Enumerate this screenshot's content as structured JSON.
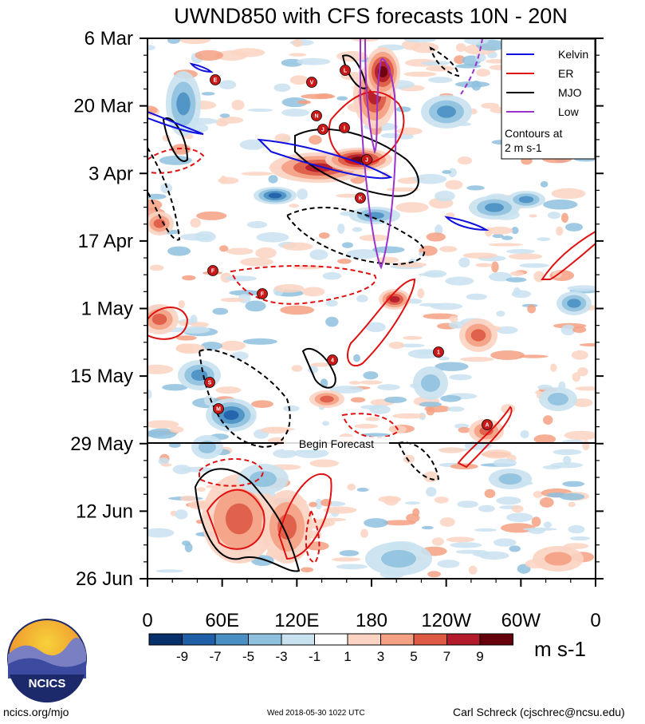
{
  "chart_data": {
    "type": "heatmap",
    "title": "UWND850 with CFS forecasts  10N - 20N",
    "x_ticks": [
      "0",
      "60E",
      "120E",
      "180",
      "120W",
      "60W",
      "0"
    ],
    "y_ticks": [
      "6 Mar",
      "20 Mar",
      "3 Apr",
      "17 Apr",
      "1 May",
      "15 May",
      "29 May",
      "12 Jun",
      "26 Jun"
    ],
    "colorbar": {
      "levels": [
        "-9",
        "-7",
        "-5",
        "-3",
        "-1",
        "1",
        "3",
        "5",
        "7",
        "9"
      ],
      "colors": [
        "#08306b",
        "#1f5fa8",
        "#4a90c4",
        "#8fc1de",
        "#c9e2f0",
        "#ffffff",
        "#fbd3c2",
        "#f4a083",
        "#de5a45",
        "#b31b2b",
        "#67000d"
      ],
      "units": "m s-1"
    },
    "legend": {
      "position": "top-right",
      "entries": [
        {
          "name": "Kelvin",
          "color": "#1010e0"
        },
        {
          "name": "ER",
          "color": "#e01010"
        },
        {
          "name": "MJO",
          "color": "#000000"
        },
        {
          "name": "Low",
          "color": "#9933cc"
        }
      ],
      "note_line1": "Contours at",
      "note_line2": "2 m s-1"
    },
    "forecast_marker": {
      "date": "29 May",
      "label": "Begin Forecast"
    },
    "storm_markers": [
      "E",
      "V",
      "L",
      "N",
      "J",
      "I",
      "J",
      "K",
      "F",
      "F",
      "4",
      "1",
      "S",
      "M",
      "A"
    ]
  },
  "footer": {
    "logo_text": "NCICS",
    "url": "ncics.org/mjo",
    "timestamp": "Wed 2018-05-30 1022 UTC",
    "author": "Carl Schreck (cjschrec@ncsu.edu)"
  }
}
